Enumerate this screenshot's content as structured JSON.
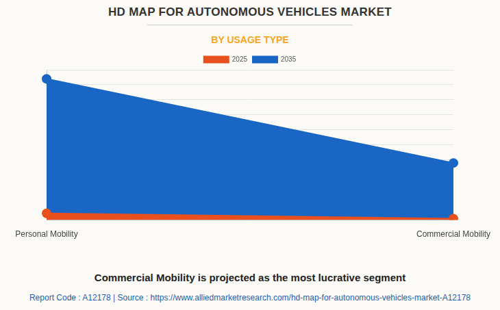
{
  "chart_data": {
    "type": "area",
    "title": "HD MAP FOR AUTONOMOUS VEHICLES MARKET",
    "subtitle": "BY USAGE TYPE",
    "categories": [
      "Personal Mobility",
      "Commercial Mobility"
    ],
    "series": [
      {
        "name": "2025",
        "color": "#e8501e",
        "values": [
          0.45,
          0.1
        ]
      },
      {
        "name": "2035",
        "color": "#1a66c4",
        "values": [
          9.4,
          3.8
        ]
      }
    ],
    "ylim": [
      0,
      10
    ],
    "yticks": [
      0,
      1,
      2,
      3,
      4,
      5,
      6,
      7,
      8,
      9,
      10
    ],
    "grid": true,
    "legend": "top",
    "tick_labels": "x",
    "marker": "circle",
    "annotations": [
      "Commercial Mobility is projected as the most lucrative segment",
      "Report Code : A12178  |  Source : https://www.alliedmarketresearch.com/hd-map-for-autonomous-vehicles-market-A12178"
    ]
  }
}
